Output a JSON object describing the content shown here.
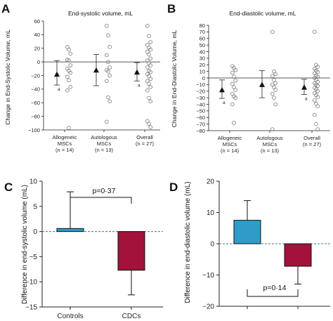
{
  "chart_data": [
    {
      "panel": "A",
      "type": "scatter",
      "title": "End-systolic volume, mL",
      "ylabel": "Change in End-Systolic Volume, mL",
      "ylim": [
        -100,
        60
      ],
      "yticks": [
        60,
        40,
        20,
        0,
        -20,
        -40,
        -60,
        -80,
        -100
      ],
      "zero_line": true,
      "groups": [
        {
          "label": "Allogeneic",
          "label2": "MSCs",
          "n": "(n = 14)",
          "mean": -18,
          "ci": [
            -34,
            2
          ],
          "mark": "a",
          "points": [
            22,
            18,
            12,
            3,
            2,
            -5,
            -10,
            -13,
            -16,
            -22,
            -27,
            -37,
            -42,
            -97
          ]
        },
        {
          "label": "Autologous",
          "label2": "MSCs",
          "n": "(n = 13)",
          "mean": -12,
          "ci": [
            -35,
            11
          ],
          "mark": "",
          "points": [
            53,
            39,
            22,
            10,
            0,
            -8,
            -12,
            -14,
            -20,
            -28,
            -52,
            -58,
            -88
          ]
        },
        {
          "label": "Overall",
          "label2": "",
          "n": "(n = 27)",
          "mean": -15,
          "ci": [
            -28,
            -1
          ],
          "mark": "a",
          "points": [
            53,
            38,
            29,
            25,
            21,
            18,
            15,
            11,
            5,
            2,
            -2,
            -5,
            -8,
            -13,
            -15,
            -18,
            -21,
            -25,
            -28,
            -32,
            -37,
            -42,
            -53,
            -58,
            -87,
            -91,
            -96
          ]
        }
      ]
    },
    {
      "panel": "B",
      "type": "scatter",
      "title": "End-diastolic volume, mL",
      "ylabel": "Change in End-Diastolic Volume, mL",
      "ylim": [
        -80,
        80
      ],
      "yticks": [
        80,
        70,
        60,
        50,
        40,
        30,
        20,
        10,
        0,
        -10,
        -20,
        -30,
        -40,
        -50,
        -60,
        -70,
        -80
      ],
      "zero_line": true,
      "groups": [
        {
          "label": "Allogeneic",
          "label2": "MSCs",
          "n": "(n = 14)",
          "mean": -18,
          "ci": [
            -31,
            -3
          ],
          "mark": "a",
          "points": [
            18,
            15,
            12,
            8,
            2,
            -4,
            -9,
            -14,
            -18,
            -24,
            -28,
            -30,
            -40,
            -68
          ]
        },
        {
          "label": "Autologous",
          "label2": "MSCs",
          "n": "(n = 13)",
          "mean": -10,
          "ci": [
            -30,
            11
          ],
          "mark": "",
          "points": [
            70,
            10,
            6,
            3,
            -3,
            -8,
            -10,
            -14,
            -18,
            -24,
            -30,
            -40,
            -78
          ]
        },
        {
          "label": "Overall",
          "label2": "",
          "n": "(n = 27)",
          "mean": -14,
          "ci": [
            -25,
            -2
          ],
          "mark": "a",
          "points": [
            70,
            20,
            17,
            14,
            11,
            9,
            7,
            4,
            2,
            0,
            -3,
            -6,
            -8,
            -10,
            -12,
            -15,
            -17,
            -20,
            -23,
            -26,
            -29,
            -34,
            -39,
            -43,
            -56,
            -70,
            -78
          ]
        }
      ]
    },
    {
      "panel": "C",
      "type": "bar",
      "ylabel": "Difference in end-systolic volume (mL)",
      "ylim": [
        -15,
        10
      ],
      "yticks": [
        10,
        5,
        0,
        -5,
        -10,
        -15
      ],
      "categories": [
        "Controls",
        "CDCs"
      ],
      "values": [
        0.6,
        -7.7
      ],
      "errors": [
        7.3,
        4.9
      ],
      "colors": [
        "#2e9cc8",
        "#a3123a"
      ],
      "pvalue": "p=0·37"
    },
    {
      "panel": "D",
      "type": "bar",
      "ylabel": "Difference in end-diastolic volume (mL)",
      "ylim": [
        -20,
        20
      ],
      "yticks": [
        20,
        10,
        0,
        -10,
        -20
      ],
      "categories": [
        "",
        ""
      ],
      "values": [
        7.5,
        -7.2
      ],
      "errors": [
        6.3,
        5.7
      ],
      "colors": [
        "#2e9cc8",
        "#a3123a"
      ],
      "pvalue": "p=0·14"
    }
  ]
}
